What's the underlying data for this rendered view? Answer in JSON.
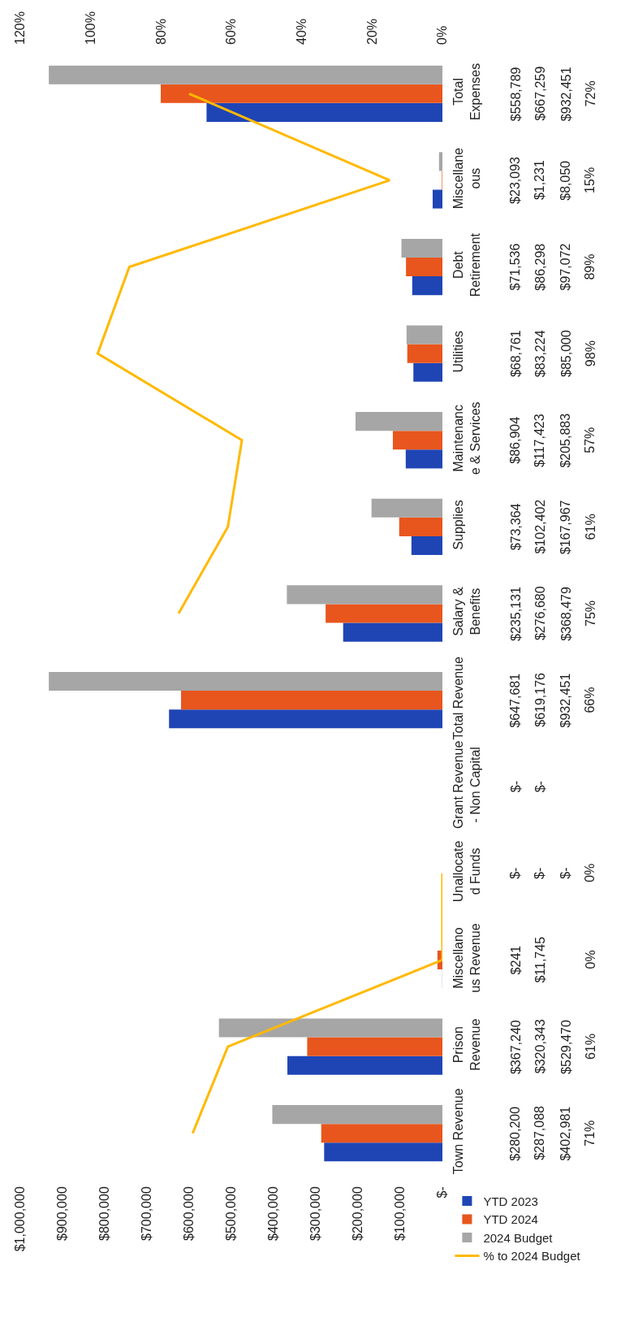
{
  "chart_data": {
    "type": "bar",
    "orientation": "horizontal",
    "categories": [
      "Total Expenses",
      "Miscellaneous",
      "Debt Retirement",
      "Utilities",
      "Maintenance & Services",
      "Supplies",
      "Salary & Benefits",
      "Total Revenue",
      "Grant Revenue - Non Capital",
      "Unallocated Funds",
      "Miscellanous Revenue",
      "Prison Revenue",
      "Town Revenue"
    ],
    "series": [
      {
        "name": "YTD 2023",
        "color": "#1f45b5",
        "values": [
          558789,
          23093,
          71536,
          68761,
          86904,
          73364,
          235131,
          647681,
          0,
          0,
          241,
          367240,
          280200
        ],
        "value_labels": [
          "$558,789",
          "$23,093",
          "$71,536",
          "$68,761",
          "$86,904",
          "$73,364",
          "$235,131",
          "$647,681",
          "$-",
          "$-",
          "$241",
          "$367,240",
          "$280,200"
        ]
      },
      {
        "name": "YTD 2024",
        "color": "#e8561e",
        "values": [
          667259,
          1231,
          86298,
          83224,
          117423,
          102402,
          276680,
          619176,
          0,
          0,
          11745,
          320343,
          287088
        ],
        "value_labels": [
          "$667,259",
          "$1,231",
          "$86,298",
          "$83,224",
          "$117,423",
          "$102,402",
          "$276,680",
          "$619,176",
          "$-",
          "$-",
          "$11,745",
          "$320,343",
          "$287,088"
        ]
      },
      {
        "name": "2024 Budget",
        "color": "#a6a6a6",
        "values": [
          932451,
          8050,
          97072,
          85000,
          205883,
          167967,
          368479,
          932451,
          null,
          0,
          null,
          529470,
          402981
        ],
        "value_labels": [
          "$932,451",
          "$8,050",
          "$97,072",
          "$85,000",
          "$205,883",
          "$167,967",
          "$368,479",
          "$932,451",
          null,
          "$-",
          null,
          "$529,470",
          "$402,981"
        ]
      },
      {
        "name": "% to 2024 Budget",
        "type": "line",
        "axis": "x2",
        "color": "#ffb900",
        "values": [
          72,
          15,
          89,
          98,
          57,
          61,
          75,
          null,
          null,
          0,
          0,
          61,
          71
        ],
        "value_labels": [
          "72%",
          "15%",
          "89%",
          "98%",
          "57%",
          "61%",
          "75%",
          "66%",
          null,
          "0%",
          "0%",
          "61%",
          "71%"
        ]
      }
    ],
    "xlim": [
      1000000,
      0
    ],
    "xticks": [
      {
        "value": 0,
        "label": "$-"
      },
      {
        "value": 100000,
        "label": "$100,000"
      },
      {
        "value": 200000,
        "label": "$200,000"
      },
      {
        "value": 300000,
        "label": "$300,000"
      },
      {
        "value": 400000,
        "label": "$400,000"
      },
      {
        "value": 500000,
        "label": "$500,000"
      },
      {
        "value": 600000,
        "label": "$600,000"
      },
      {
        "value": 700000,
        "label": "$700,000"
      },
      {
        "value": 800000,
        "label": "$800,000"
      },
      {
        "value": 900000,
        "label": "$900,000"
      },
      {
        "value": 1000000,
        "label": "$1,000,000"
      }
    ],
    "x2lim": [
      120,
      0
    ],
    "x2ticks": [
      {
        "value": 0,
        "label": "0%"
      },
      {
        "value": 20,
        "label": "20%"
      },
      {
        "value": 40,
        "label": "40%"
      },
      {
        "value": 60,
        "label": "60%"
      },
      {
        "value": 80,
        "label": "80%"
      },
      {
        "value": 100,
        "label": "100%"
      },
      {
        "value": 120,
        "label": "120%"
      }
    ],
    "legend": "bottom right",
    "grid": false,
    "data_labels": true,
    "marker": "none",
    "line_style": "solid"
  }
}
